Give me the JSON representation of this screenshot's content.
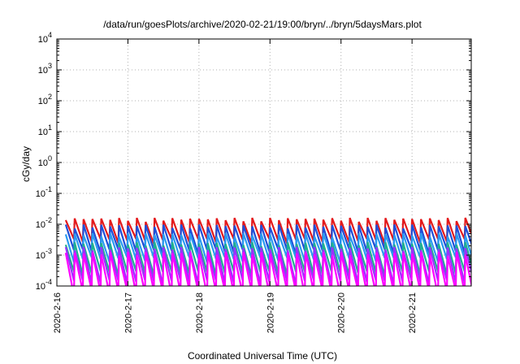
{
  "chart_data": {
    "type": "line",
    "title": "/data/run/goesPlots/archive/2020-02-21/19:00/bryn/../bryn/5daysMars.plot",
    "xlabel": "Coordinated Universal Time (UTC)",
    "ylabel": "cGy/day",
    "yscale": "log",
    "ylim": [
      0.0001,
      10000
    ],
    "xlim": [
      "2020-02-16 00:00",
      "2020-02-21 20:00"
    ],
    "x_ticks": [
      "2020-2-16",
      "2020-2-17",
      "2020-2-18",
      "2020-2-19",
      "2020-2-20",
      "2020-2-21"
    ],
    "y_ticks": [
      {
        "base": "10",
        "exp": "-4"
      },
      {
        "base": "10",
        "exp": "-3"
      },
      {
        "base": "10",
        "exp": "-2"
      },
      {
        "base": "10",
        "exp": "-1"
      },
      {
        "base": "10",
        "exp": "0"
      },
      {
        "base": "10",
        "exp": "1"
      },
      {
        "base": "10",
        "exp": "2"
      },
      {
        "base": "10",
        "exp": "3"
      },
      {
        "base": "10",
        "exp": "4"
      }
    ],
    "grid": true,
    "legend": "none",
    "sawtooth_period_hours": 3,
    "series": [
      {
        "color": "#e41a1c",
        "peak": 0.014,
        "trough": 0.0028
      },
      {
        "color": "#1f4fd8",
        "peak": 0.0085,
        "trough": 0.0013
      },
      {
        "color": "#2a9bf0",
        "peak": 0.0045,
        "trough": 0.0007
      },
      {
        "color": "#20b090",
        "peak": 0.0023,
        "trough": 0.00025
      },
      {
        "color": "#9b30ff",
        "peak": 0.0016,
        "trough": 0.00013
      },
      {
        "color": "#ff00ff",
        "peak": 0.0011,
        "trough": 6e-05
      }
    ]
  }
}
